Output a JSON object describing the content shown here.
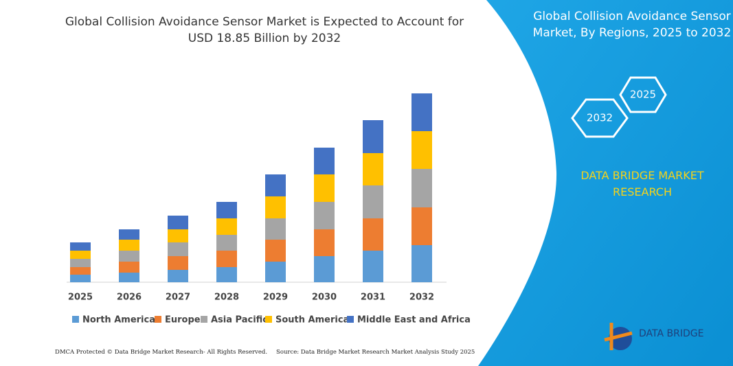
{
  "chart_data": {
    "type": "bar",
    "stacked": true,
    "title": "Global Collision Avoidance Sensor Market is Expected to Account for USD 18.85 Billion by 2032",
    "categories": [
      "2025",
      "2026",
      "2027",
      "2028",
      "2029",
      "2030",
      "2031",
      "2032"
    ],
    "series": [
      {
        "name": "North America",
        "color": "#5b9bd5",
        "values": [
          11,
          14,
          18,
          22,
          30,
          38,
          46,
          54
        ]
      },
      {
        "name": "Europe",
        "color": "#ed7d31",
        "values": [
          11,
          16,
          20,
          24,
          32,
          39,
          47,
          55
        ]
      },
      {
        "name": "Asia Pacific",
        "color": "#a5a5a5",
        "values": [
          12,
          16,
          20,
          23,
          31,
          40,
          48,
          56
        ]
      },
      {
        "name": "South America",
        "color": "#ffc000",
        "values": [
          12,
          16,
          19,
          24,
          32,
          40,
          47,
          55
        ]
      },
      {
        "name": "Middle East and Africa",
        "color": "#4472c4",
        "values": [
          12,
          15,
          20,
          24,
          32,
          39,
          48,
          55
        ]
      }
    ],
    "ylim": [
      0,
      300
    ]
  },
  "panel": {
    "title": "Global Collision Avoidance Sensor Market, By Regions, 2025 to 2032",
    "hexagons": [
      "2032",
      "2025"
    ],
    "brand": "DATA BRIDGE MARKET RESEARCH",
    "logo": "DATA BRIDGE"
  },
  "footer": {
    "left": "DMCA Protected © Data Bridge Market Research- All Rights Reserved.",
    "right": "Source: Data Bridge Market Research Market Analysis Study 2025"
  }
}
